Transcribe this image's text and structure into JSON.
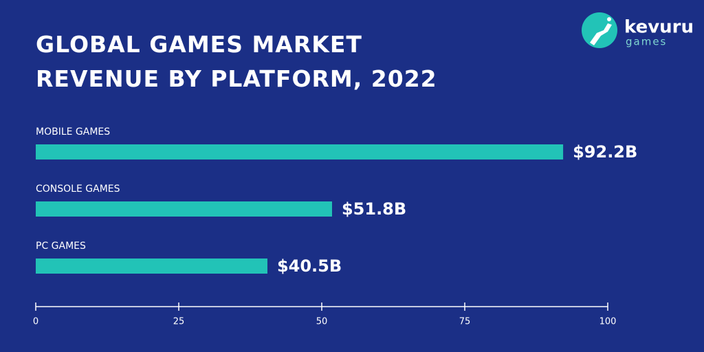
{
  "chart_data": {
    "type": "bar",
    "orientation": "horizontal",
    "title": "GLOBAL GAMES MARKET REVENUE BY PLATFORM, 2022",
    "categories": [
      "MOBILE GAMES",
      "CONSOLE GAMES",
      "PC GAMES"
    ],
    "values": [
      92.2,
      51.8,
      40.5
    ],
    "value_labels": [
      "$92.2B",
      "$51.8B",
      "$40.5B"
    ],
    "color": "#22c3b7",
    "xlim": [
      0,
      100
    ],
    "xticks": [
      0,
      25,
      50,
      75,
      100
    ],
    "logo": {
      "name": "kevuru",
      "tagline": "games"
    }
  }
}
